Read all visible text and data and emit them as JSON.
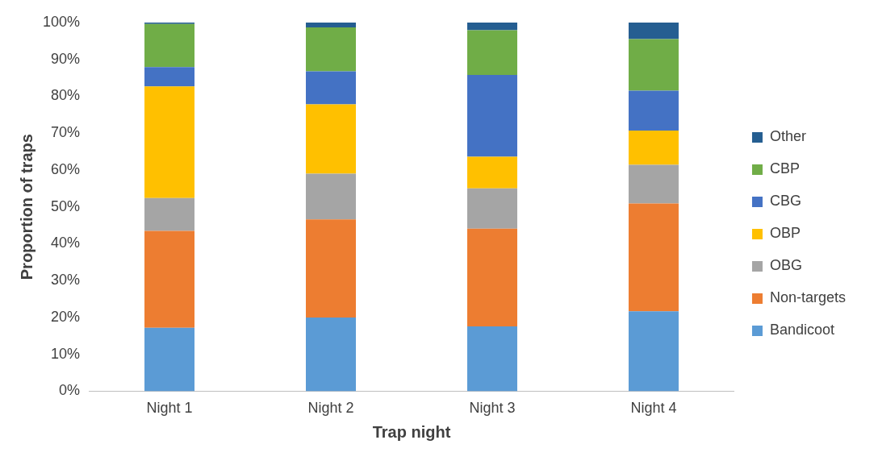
{
  "chart_data": {
    "type": "bar",
    "stacked": true,
    "xlabel": "Trap night",
    "ylabel": "Proportion of traps",
    "categories": [
      "Night 1",
      "Night 2",
      "Night 3",
      "Night 4"
    ],
    "series": [
      {
        "name": "Bandicoot",
        "color": "#5b9bd5",
        "values": [
          17.2,
          20.0,
          17.6,
          21.7
        ]
      },
      {
        "name": "Non-targets",
        "color": "#ed7d31",
        "values": [
          26.3,
          26.6,
          26.5,
          29.2
        ]
      },
      {
        "name": "OBG",
        "color": "#a5a5a5",
        "values": [
          8.9,
          12.4,
          10.9,
          10.5
        ]
      },
      {
        "name": "OBP",
        "color": "#ffc000",
        "values": [
          30.3,
          18.8,
          8.6,
          9.3
        ]
      },
      {
        "name": "CBG",
        "color": "#4472c4",
        "values": [
          5.2,
          9.0,
          22.2,
          10.8
        ]
      },
      {
        "name": "CBP",
        "color": "#70ad47",
        "values": [
          11.7,
          11.9,
          12.1,
          14.0
        ]
      },
      {
        "name": "Other",
        "color": "#255e91",
        "values": [
          0.4,
          1.3,
          2.1,
          4.5
        ]
      }
    ],
    "ylim": [
      0,
      100
    ],
    "yticks": [
      {
        "value": 0,
        "label": "0%"
      },
      {
        "value": 10,
        "label": "10%"
      },
      {
        "value": 20,
        "label": "20%"
      },
      {
        "value": 30,
        "label": "30%"
      },
      {
        "value": 40,
        "label": "40%"
      },
      {
        "value": 50,
        "label": "50%"
      },
      {
        "value": 60,
        "label": "60%"
      },
      {
        "value": 70,
        "label": "70%"
      },
      {
        "value": 80,
        "label": "80%"
      },
      {
        "value": 90,
        "label": "90%"
      },
      {
        "value": 100,
        "label": "100%"
      }
    ],
    "grid": false,
    "legend": "right"
  }
}
